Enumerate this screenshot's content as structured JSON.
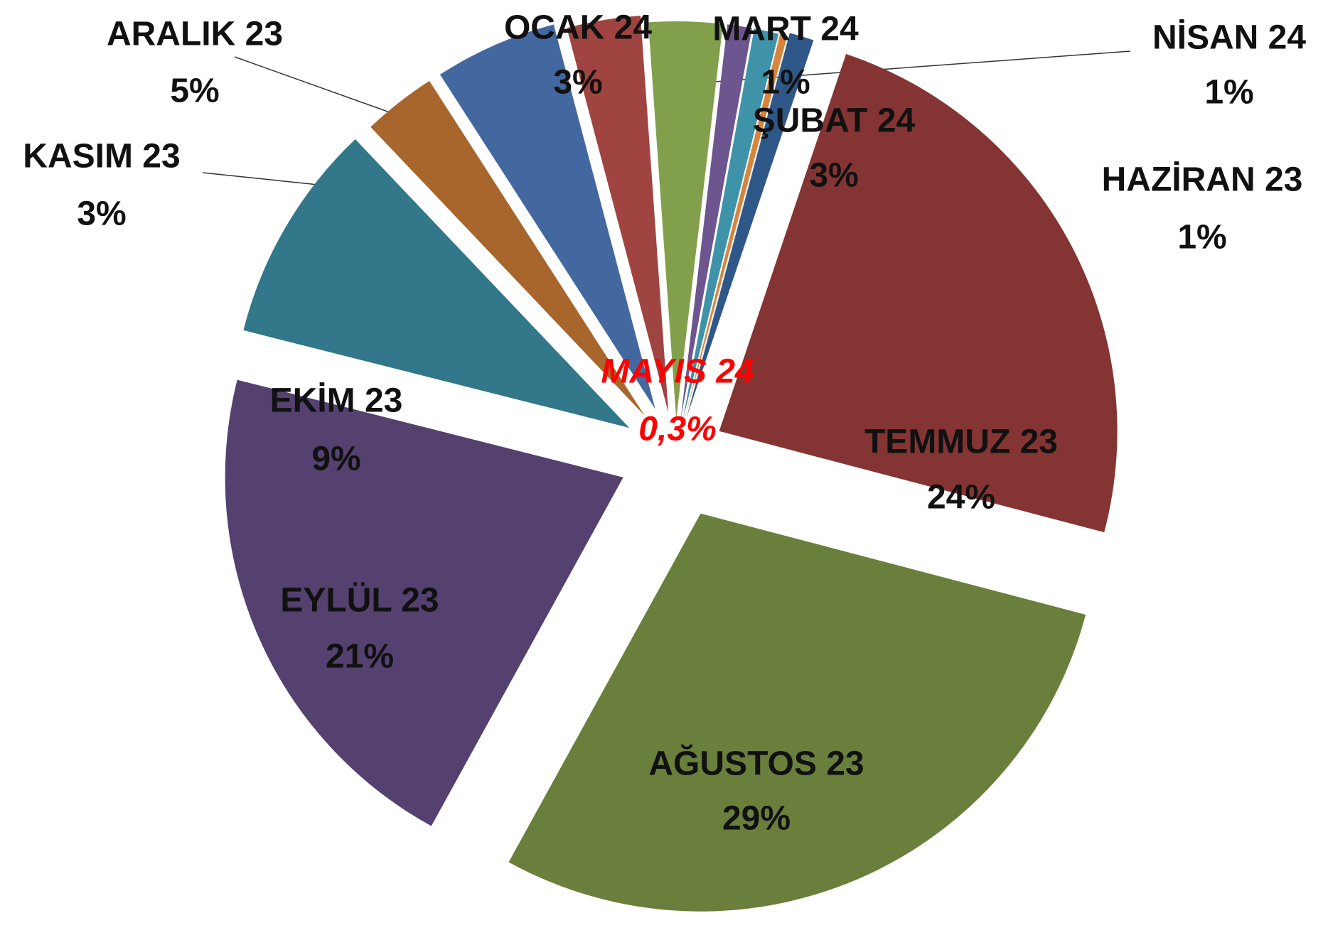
{
  "chart_data": {
    "type": "pie",
    "categories": [
      "HAZİRAN 23",
      "TEMMUZ 23",
      "AĞUSTOS 23",
      "EYLÜL 23",
      "EKİM 23",
      "KASIM 23",
      "ARALIK 23",
      "OCAK 24",
      "ŞUBAT 24",
      "MART 24",
      "NİSAN 24",
      "MAYIS 24"
    ],
    "values": [
      1,
      24,
      29,
      21,
      9,
      3,
      5,
      3,
      3,
      1,
      1,
      0.3
    ],
    "value_labels": [
      "1%",
      "24%",
      "29%",
      "21%",
      "9%",
      "3%",
      "5%",
      "3%",
      "3%",
      "1%",
      "1%",
      "0,3%"
    ],
    "colors": [
      "#2f5889",
      "#843533",
      "#6a7f3b",
      "#54416f",
      "#32778a",
      "#a8662c",
      "#4368a0",
      "#a04441",
      "#82a04c",
      "#6d5590",
      "#3e93a8",
      "#d9843d"
    ]
  }
}
